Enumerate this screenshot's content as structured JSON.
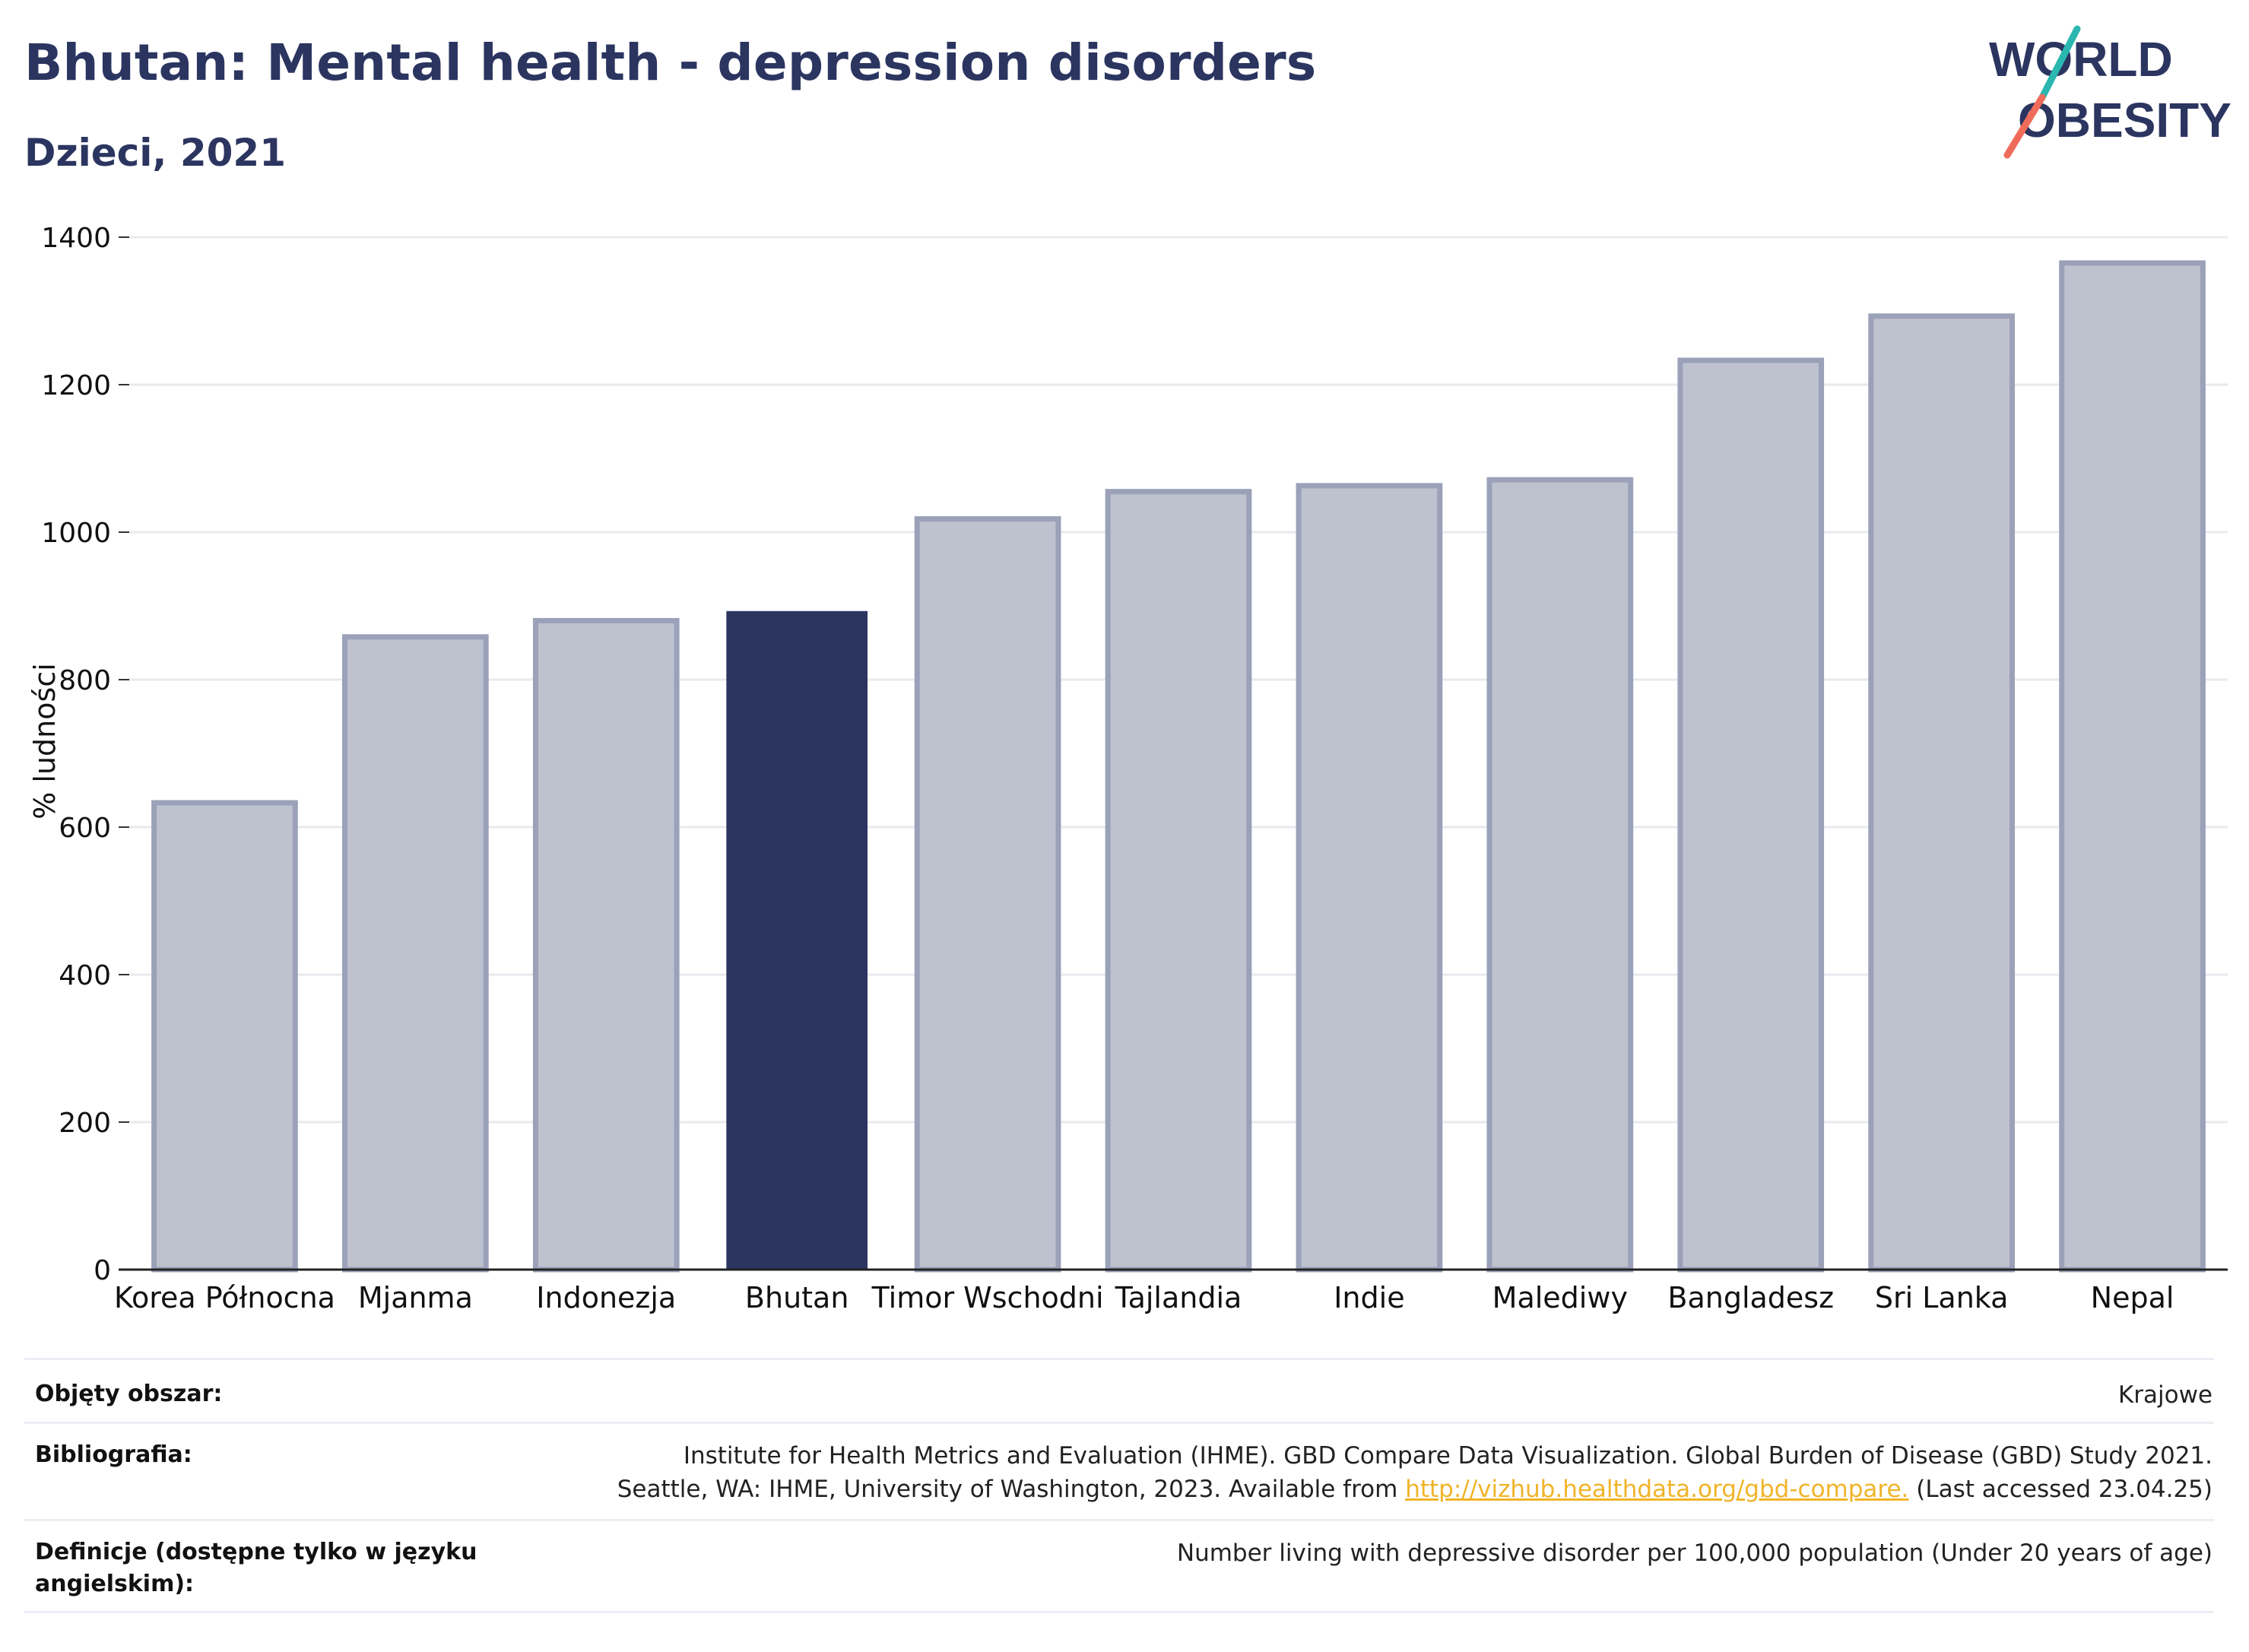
{
  "header": {
    "title": "Bhutan: Mental health - depression disorders",
    "subtitle": "Dzieci, 2021"
  },
  "logo": {
    "line1": "WORLD",
    "line2": "OBESITY",
    "colors": {
      "text": "#2b3560",
      "slash_top": "#2ab7b0",
      "slash_bottom": "#ef6b5a"
    }
  },
  "chart_data": {
    "type": "bar",
    "ylabel": "% ludności",
    "xlabel": "",
    "ylim": [
      0,
      1400
    ],
    "yticks": [
      0,
      200,
      400,
      600,
      800,
      1000,
      1200,
      1400
    ],
    "grid": true,
    "categories": [
      "Korea Północna",
      "Mjanma",
      "Indonezja",
      "Bhutan",
      "Timor Wschodni",
      "Tajlandia",
      "Indie",
      "Malediwy",
      "Bangladesz",
      "Sri Lanka",
      "Nepal"
    ],
    "values": [
      633,
      858,
      880,
      893,
      1018,
      1055,
      1063,
      1071,
      1233,
      1293,
      1365
    ],
    "highlight": "Bhutan",
    "colors": {
      "default_fill": "#bec2cf",
      "default_stroke": "#9aa1b8",
      "highlight_fill": "#2b3560"
    }
  },
  "footer": {
    "rows": [
      {
        "label": "Objęty obszar:",
        "value": "Krajowe"
      },
      {
        "label": "Bibliografia:",
        "value_line1": "Institute for Health Metrics and Evaluation (IHME). GBD Compare Data Visualization. Global Burden of Disease (GBD) Study 2021.",
        "value_line2_prefix": "Seattle, WA: IHME, University of Washington, 2023. Available from ",
        "link": "http://vizhub.healthdata.org/gbd-compare.",
        "value_line2_suffix": " (Last accessed 23.04.25)"
      },
      {
        "label": "Definicje (dostępne tylko w języku angielskim):",
        "value": "Number living with depressive disorder per 100,000 population (Under 20 years of age)"
      }
    ]
  }
}
